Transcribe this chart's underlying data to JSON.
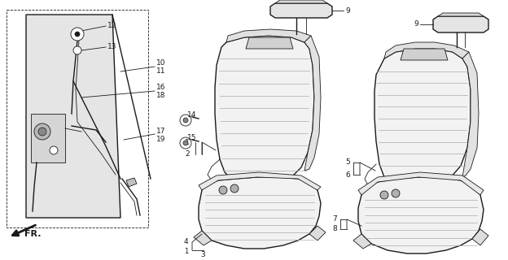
{
  "bg_color": "#ffffff",
  "line_color": "#1a1a1a",
  "fill_light": "#f2f2f2",
  "fill_stripe": "#d8d8d8",
  "fill_panel": "#e5e5e5",
  "figsize": [
    6.24,
    3.2
  ],
  "dpi": 100
}
